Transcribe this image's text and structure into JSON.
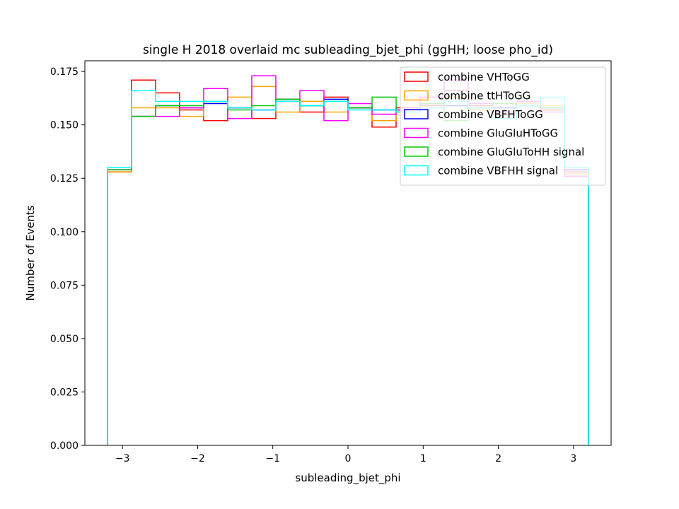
{
  "chart_data": {
    "type": "step-histogram",
    "title": "single H 2018 overlaid mc subleading_bjet_phi (ggHH; loose pho_id)",
    "xlabel": "subleading_bjet_phi",
    "ylabel": "Number of Events",
    "xlim": [
      -3.5,
      3.5
    ],
    "ylim": [
      0,
      0.18
    ],
    "xticks": [
      -3,
      -2,
      -1,
      0,
      1,
      2,
      3
    ],
    "xtick_labels": [
      "−3",
      "−2",
      "−1",
      "0",
      "1",
      "2",
      "3"
    ],
    "yticks": [
      0.0,
      0.025,
      0.05,
      0.075,
      0.1,
      0.125,
      0.15,
      0.175
    ],
    "ytick_labels": [
      "0.000",
      "0.025",
      "0.050",
      "0.075",
      "0.100",
      "0.125",
      "0.150",
      "0.175"
    ],
    "grid": false,
    "legend_position": "top-right",
    "bin_edges": [
      -3.2,
      -2.88,
      -2.56,
      -2.24,
      -1.92,
      -1.6,
      -1.28,
      -0.96,
      -0.64,
      -0.32,
      0.0,
      0.32,
      0.64,
      0.96,
      1.28,
      1.6,
      1.92,
      2.24,
      2.56,
      2.88,
      3.2
    ],
    "series": [
      {
        "name": "combine VHToGG",
        "color": "#ff0000",
        "values": [
          0.128,
          0.171,
          0.165,
          0.157,
          0.152,
          0.158,
          0.153,
          0.162,
          0.156,
          0.163,
          0.158,
          0.149,
          0.158,
          0.159,
          0.166,
          0.159,
          0.155,
          0.159,
          0.157,
          0.128
        ]
      },
      {
        "name": "combine ttHToGG",
        "color": "#ffa500",
        "values": [
          0.128,
          0.158,
          0.158,
          0.154,
          0.161,
          0.163,
          0.168,
          0.156,
          0.161,
          0.156,
          0.158,
          0.152,
          0.156,
          0.16,
          0.163,
          0.157,
          0.156,
          0.16,
          0.159,
          0.127
        ]
      },
      {
        "name": "combine VBFHToGG",
        "color": "#0000ff",
        "values": [
          0.129,
          0.154,
          0.159,
          0.158,
          0.16,
          0.158,
          0.157,
          0.162,
          0.159,
          0.162,
          0.158,
          0.157,
          0.157,
          0.16,
          0.159,
          0.158,
          0.158,
          0.159,
          0.158,
          0.129
        ]
      },
      {
        "name": "combine GluGluHToGG",
        "color": "#ff00ff",
        "values": [
          0.129,
          0.154,
          0.154,
          0.158,
          0.167,
          0.153,
          0.173,
          0.161,
          0.166,
          0.152,
          0.16,
          0.155,
          0.157,
          0.163,
          0.171,
          0.16,
          0.156,
          0.161,
          0.156,
          0.126
        ]
      },
      {
        "name": "combine GluGluToHH signal",
        "color": "#00cc00",
        "values": [
          0.129,
          0.154,
          0.159,
          0.159,
          0.161,
          0.157,
          0.159,
          0.162,
          0.159,
          0.161,
          0.158,
          0.163,
          0.156,
          0.16,
          0.152,
          0.158,
          0.16,
          0.159,
          0.158,
          0.13
        ]
      },
      {
        "name": "combine VBFHH signal",
        "color": "#00ffff",
        "values": [
          0.13,
          0.166,
          0.161,
          0.161,
          0.161,
          0.158,
          0.157,
          0.161,
          0.159,
          0.161,
          0.157,
          0.157,
          0.156,
          0.158,
          0.161,
          0.158,
          0.153,
          0.159,
          0.163,
          0.13
        ]
      }
    ]
  }
}
